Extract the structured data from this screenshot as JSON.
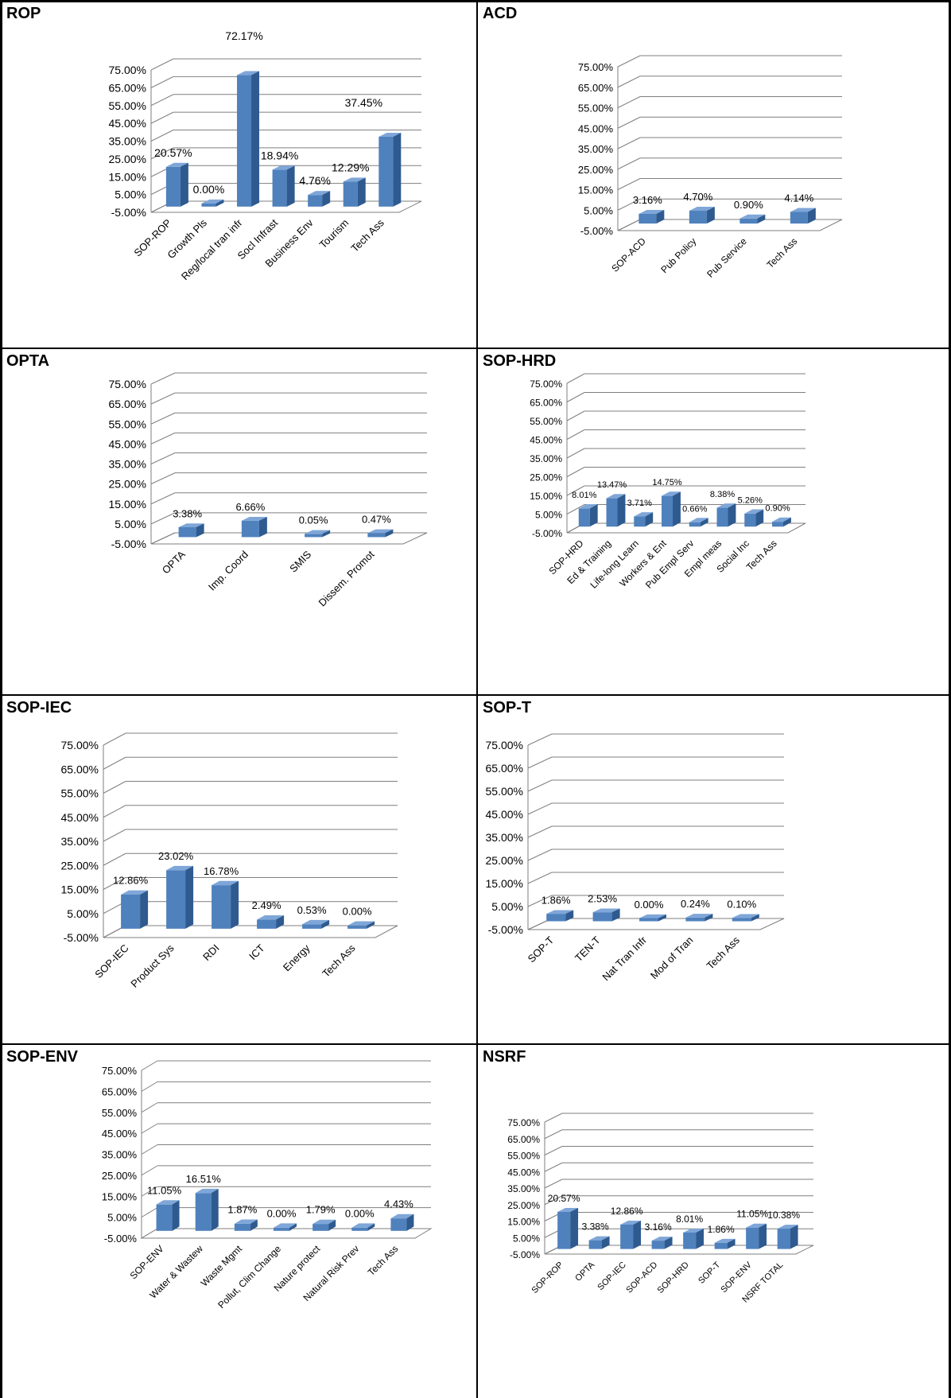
{
  "charts": [
    {
      "title": "ROP",
      "chart_data": {
        "type": "bar",
        "categories": [
          "SOP-ROP",
          "Growth Pls",
          "Reg/local tran infr",
          "Socl Infrast",
          "Business Env",
          "Tourism",
          "Tech Ass"
        ],
        "values": [
          20.57,
          0.0,
          72.17,
          18.94,
          4.76,
          12.29,
          37.45
        ],
        "value_labels": [
          "20.57%",
          "0.00%",
          "72.17%",
          "18.94%",
          "4.76%",
          "12.29%",
          "37.45%"
        ],
        "ytick_labels": [
          "75.00%",
          "65.00%",
          "55.00%",
          "45.00%",
          "35.00%",
          "25.00%",
          "15.00%",
          "5.00%",
          "-5.00%"
        ],
        "ylim": [
          -5,
          75
        ],
        "bar_color": "#4f81bd"
      }
    },
    {
      "title": "ACD",
      "chart_data": {
        "type": "bar",
        "categories": [
          "SOP-ACD",
          "Pub Policy",
          "Pub Service",
          "Tech Ass"
        ],
        "values": [
          3.16,
          4.7,
          0.9,
          4.14
        ],
        "value_labels": [
          "3.16%",
          "4.70%",
          "0.90%",
          "4.14%"
        ],
        "ytick_labels": [
          "75.00%",
          "65.00%",
          "55.00%",
          "45.00%",
          "35.00%",
          "25.00%",
          "15.00%",
          "5.00%",
          "-5.00%"
        ],
        "ylim": [
          -5,
          75
        ],
        "bar_color": "#4f81bd"
      }
    },
    {
      "title": "OPTA",
      "chart_data": {
        "type": "bar",
        "categories": [
          "OPTA",
          "Imp. Coord",
          "SMIS",
          "Dissem. Promot"
        ],
        "values": [
          3.38,
          6.66,
          0.05,
          0.47
        ],
        "value_labels": [
          "3.38%",
          "6.66%",
          "0.05%",
          "0.47%"
        ],
        "ytick_labels": [
          "75.00%",
          "65.00%",
          "55.00%",
          "45.00%",
          "35.00%",
          "25.00%",
          "15.00%",
          "5.00%",
          "-5.00%"
        ],
        "ylim": [
          -5,
          75
        ],
        "bar_color": "#4f81bd"
      }
    },
    {
      "title": "SOP-HRD",
      "chart_data": {
        "type": "bar",
        "categories": [
          "SOP-HRD",
          "Ed & Training",
          "Life-long Learn",
          "Workers & Ent",
          "Pub Empl Serv",
          "Empl meas",
          "Social Inc",
          "Tech Ass"
        ],
        "values": [
          8.01,
          13.47,
          3.71,
          14.75,
          0.66,
          8.38,
          5.26,
          0.9
        ],
        "value_labels": [
          "8.01%",
          "13.47%",
          "3.71%",
          "14.75%",
          "0.66%",
          "8.38%",
          "5.26%",
          "0.90%"
        ],
        "ytick_labels": [
          "75.00%",
          "65.00%",
          "55.00%",
          "45.00%",
          "35.00%",
          "25.00%",
          "15.00%",
          "5.00%",
          "-5.00%"
        ],
        "ylim": [
          -5,
          75
        ],
        "bar_color": "#4f81bd"
      }
    },
    {
      "title": "SOP-IEC",
      "chart_data": {
        "type": "bar",
        "categories": [
          "SOP-IEC",
          "Product Sys",
          "RDI",
          "ICT",
          "Energy",
          "Tech Ass"
        ],
        "values": [
          12.86,
          23.02,
          16.78,
          2.49,
          0.53,
          0.0
        ],
        "value_labels": [
          "12.86%",
          "23.02%",
          "16.78%",
          "2.49%",
          "0.53%",
          "0.00%"
        ],
        "ytick_labels": [
          "75.00%",
          "65.00%",
          "55.00%",
          "45.00%",
          "35.00%",
          "25.00%",
          "15.00%",
          "5.00%",
          "-5.00%"
        ],
        "ylim": [
          -5,
          75
        ],
        "bar_color": "#4f81bd"
      }
    },
    {
      "title": "SOP-T",
      "chart_data": {
        "type": "bar",
        "categories": [
          "SOP-T",
          "TEN-T",
          "Nat Tran Infr",
          "Mod of Tran",
          "Tech Ass"
        ],
        "values": [
          1.86,
          2.53,
          0.0,
          0.24,
          0.1
        ],
        "value_labels": [
          "1.86%",
          "2.53%",
          "0.00%",
          "0.24%",
          "0.10%"
        ],
        "ytick_labels": [
          "75.00%",
          "65.00%",
          "55.00%",
          "45.00%",
          "35.00%",
          "25.00%",
          "15.00%",
          "5.00%",
          "-5.00%"
        ],
        "ylim": [
          -5,
          75
        ],
        "bar_color": "#4f81bd"
      }
    },
    {
      "title": "SOP-ENV",
      "chart_data": {
        "type": "bar",
        "categories": [
          "SOP-ENV",
          "Water & Wastew",
          "Waste Mgmt",
          "Pollut, Clim Change",
          "Nature protect",
          "Natural Risk Prev",
          "Tech Ass"
        ],
        "values": [
          11.05,
          16.51,
          1.87,
          0.0,
          1.79,
          0.0,
          4.43
        ],
        "value_labels": [
          "11.05%",
          "16.51%",
          "1.87%",
          "0.00%",
          "1.79%",
          "0.00%",
          "4.43%"
        ],
        "ytick_labels": [
          "75.00%",
          "65.00%",
          "55.00%",
          "45.00%",
          "35.00%",
          "25.00%",
          "15.00%",
          "5.00%",
          "-5.00%"
        ],
        "ylim": [
          -5,
          75
        ],
        "bar_color": "#4f81bd"
      }
    },
    {
      "title": "NSRF",
      "chart_data": {
        "type": "bar",
        "categories": [
          "SOP-ROP",
          "OPTA",
          "SOP-IEC",
          "SOP-ACD",
          "SOP-HRD",
          "SOP-T",
          "SOP-ENV",
          "NSRF TOTAL"
        ],
        "values": [
          20.57,
          3.38,
          12.86,
          3.16,
          8.01,
          1.86,
          11.05,
          10.38
        ],
        "value_labels": [
          "20.57%",
          "3.38%",
          "12.86%",
          "3.16%",
          "8.01%",
          "1.86%",
          "11.05%",
          "10.38%"
        ],
        "ytick_labels": [
          "75.00%",
          "65.00%",
          "55.00%",
          "45.00%",
          "35.00%",
          "25.00%",
          "15.00%",
          "5.00%",
          "-5.00%"
        ],
        "ylim": [
          -5,
          75
        ],
        "bar_color": "#4f81bd"
      }
    }
  ]
}
